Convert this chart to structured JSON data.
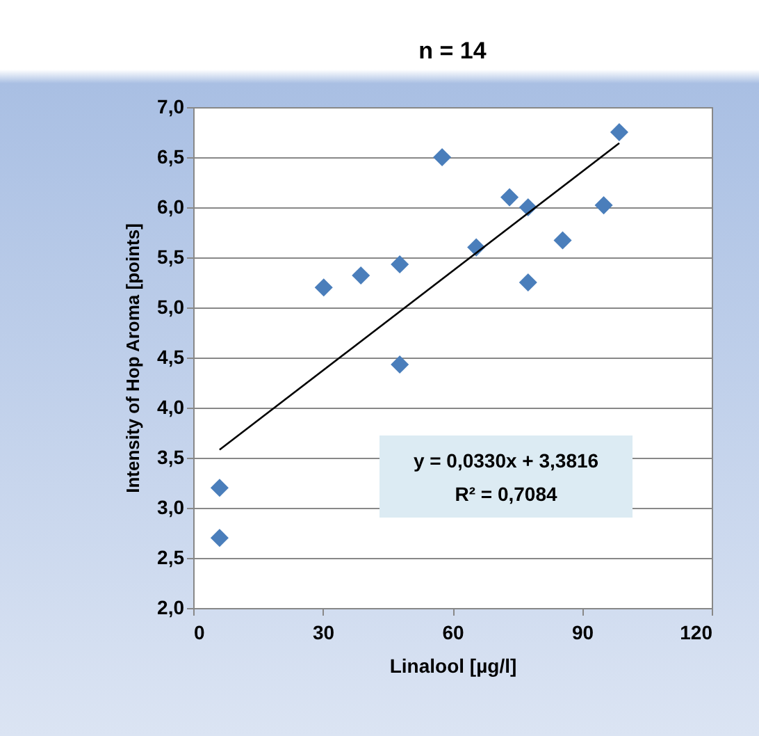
{
  "chart_data": {
    "type": "scatter",
    "title": "n = 14",
    "xlabel": "Linalool  [µg/l]",
    "ylabel": "Intensity of Hop Aroma [points]",
    "series": [
      {
        "color": "#4a7ebb",
        "marker": "diamond",
        "x": [
          6.1,
          6.1,
          30.2,
          38.8,
          47.8,
          47.8,
          57.6,
          65.5,
          73.2,
          77.5,
          77.5,
          85.5,
          95,
          98.6
        ],
        "values": [
          2.7,
          3.2,
          5.2,
          5.32,
          5.43,
          4.43,
          6.5,
          5.6,
          6.1,
          6.0,
          5.25,
          5.67,
          6.02,
          6.75
        ]
      },
      {
        "type": "line",
        "color": "#000000",
        "x": [
          6.1,
          98.6
        ],
        "values": [
          3.58,
          6.64
        ]
      }
    ],
    "xlim": [
      0,
      120
    ],
    "xticks": [
      0,
      30,
      60,
      90,
      120
    ],
    "ylim": [
      2,
      7
    ],
    "yticks": [
      {
        "value": 2,
        "label": "2,0"
      },
      {
        "value": 2.5,
        "label": "2,5"
      },
      {
        "value": 3,
        "label": "3,0"
      },
      {
        "value": 3.5,
        "label": "3,5"
      },
      {
        "value": 4,
        "label": "4,0"
      },
      {
        "value": 4.5,
        "label": "4,5"
      },
      {
        "value": 5,
        "label": "5,0"
      },
      {
        "value": 5.5,
        "label": "5,5"
      },
      {
        "value": 6,
        "label": "6,0"
      },
      {
        "value": 6.5,
        "label": "6,5"
      },
      {
        "value": 7,
        "label": "7,0"
      }
    ],
    "grid": "y",
    "line_style": "solid",
    "annotations": [
      "y = 0,0330x + 3,3816",
      "R² = 0,7084"
    ]
  }
}
